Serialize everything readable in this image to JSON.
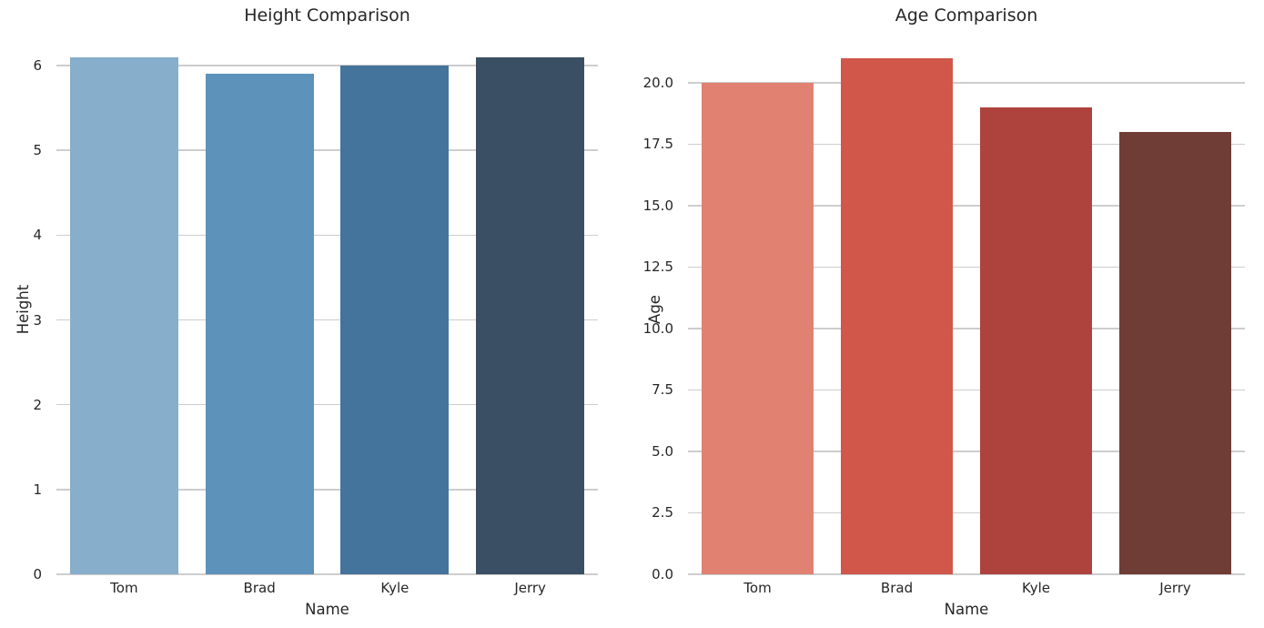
{
  "figure": {
    "background_color": "#ffffff",
    "text_color": "#262626",
    "grid_color": "#cdcdcd"
  },
  "chart_data": [
    {
      "type": "bar",
      "title": "Height Comparison",
      "xlabel": "Name",
      "ylabel": "Height",
      "categories": [
        "Tom",
        "Brad",
        "Kyle",
        "Jerry"
      ],
      "values": [
        6.1,
        5.9,
        6.0,
        6.1
      ],
      "bar_colors": [
        "#87aecb",
        "#5d92ba",
        "#44739c",
        "#3a4f63"
      ],
      "ylim": [
        0,
        6.29
      ],
      "yticks": [
        0,
        1,
        2,
        3,
        4,
        5,
        6
      ],
      "ytick_labels": [
        "0",
        "1",
        "2",
        "3",
        "4",
        "5",
        "6"
      ],
      "grid": true,
      "legend_position": "none"
    },
    {
      "type": "bar",
      "title": "Age Comparison",
      "xlabel": "Name",
      "ylabel": "Age",
      "categories": [
        "Tom",
        "Brad",
        "Kyle",
        "Jerry"
      ],
      "values": [
        20,
        21,
        19,
        18
      ],
      "bar_colors": [
        "#e08172",
        "#d0574a",
        "#ae433e",
        "#703c36"
      ],
      "ylim": [
        0,
        21.7
      ],
      "yticks": [
        0,
        2.5,
        5,
        7.5,
        10,
        12.5,
        15,
        17.5,
        20
      ],
      "ytick_labels": [
        "0.0",
        "2.5",
        "5.0",
        "7.5",
        "10.0",
        "12.5",
        "15.0",
        "17.5",
        "20.0"
      ],
      "grid": true,
      "legend_position": "none"
    }
  ]
}
